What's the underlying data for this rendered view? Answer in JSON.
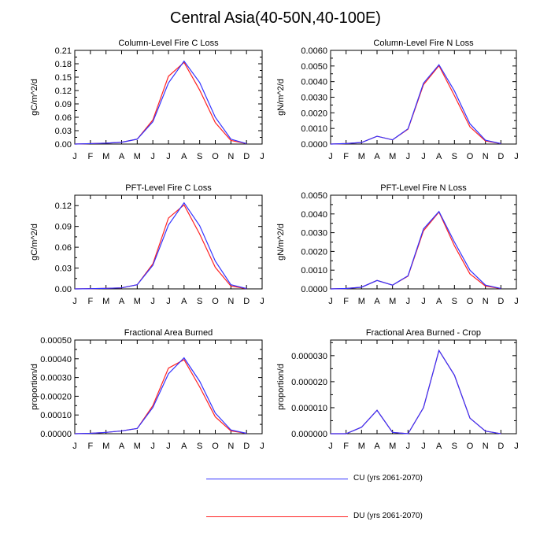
{
  "title": "Central Asia(40-50N,40-100E)",
  "colors": {
    "cu": "#3333ff",
    "du": "#ff2222"
  },
  "month_ticks": [
    "J",
    "F",
    "M",
    "A",
    "M",
    "J",
    "J",
    "A",
    "S",
    "O",
    "N",
    "D",
    "J"
  ],
  "legend": {
    "items": [
      {
        "label": "CU (yrs 2061-2070)",
        "color": "#3333ff"
      },
      {
        "label": "DU (yrs 2061-2070)",
        "color": "#ff2222"
      }
    ]
  },
  "chart_data": [
    {
      "type": "line",
      "title": "Column-Level Fire C Loss",
      "ylabel": "gC/m^2/d",
      "ylim": [
        0,
        0.21
      ],
      "yticks": [
        "0.00",
        "0.03",
        "0.06",
        "0.09",
        "0.12",
        "0.15",
        "0.18",
        "0.21"
      ],
      "x": [
        "Jan",
        "Feb",
        "Mar",
        "Apr",
        "May",
        "Jun",
        "Jul",
        "Aug",
        "Sep",
        "Oct",
        "Nov",
        "Dec"
      ],
      "series": [
        {
          "name": "CU (yrs 2061-2070)",
          "values": [
            0.0,
            0.001,
            0.002,
            0.004,
            0.011,
            0.05,
            0.137,
            0.186,
            0.138,
            0.06,
            0.011,
            0.001
          ]
        },
        {
          "name": "DU (yrs 2061-2070)",
          "values": [
            0.0,
            0.001,
            0.002,
            0.004,
            0.011,
            0.054,
            0.152,
            0.183,
            0.121,
            0.048,
            0.008,
            0.001
          ]
        }
      ]
    },
    {
      "type": "line",
      "title": "Column-Level Fire N Loss",
      "ylabel": "gN/m^2/d",
      "ylim": [
        0,
        0.006
      ],
      "yticks": [
        "0.0000",
        "0.0010",
        "0.0020",
        "0.0030",
        "0.0040",
        "0.0050",
        "0.0060"
      ],
      "x": [
        "Jan",
        "Feb",
        "Mar",
        "Apr",
        "May",
        "Jun",
        "Jul",
        "Aug",
        "Sep",
        "Oct",
        "Nov",
        "Dec"
      ],
      "series": [
        {
          "name": "CU (yrs 2061-2070)",
          "values": [
            0.0,
            3e-05,
            0.0001,
            0.0005,
            0.00027,
            0.00098,
            0.0039,
            0.00508,
            0.0034,
            0.0013,
            0.00025,
            3e-05
          ]
        },
        {
          "name": "DU (yrs 2061-2070)",
          "values": [
            0.0,
            3e-05,
            0.0001,
            0.0005,
            0.00027,
            0.00095,
            0.0038,
            0.00502,
            0.0031,
            0.0011,
            0.0002,
            3e-05
          ]
        }
      ]
    },
    {
      "type": "line",
      "title": "PFT-Level Fire C Loss",
      "ylabel": "gC/m^2/d",
      "ylim": [
        0,
        0.135
      ],
      "yticks": [
        "0.00",
        "0.03",
        "0.06",
        "0.09",
        "0.12"
      ],
      "x": [
        "Jan",
        "Feb",
        "Mar",
        "Apr",
        "May",
        "Jun",
        "Jul",
        "Aug",
        "Sep",
        "Oct",
        "Nov",
        "Dec"
      ],
      "series": [
        {
          "name": "CU (yrs 2061-2070)",
          "values": [
            0.0,
            0.0003,
            0.0008,
            0.0015,
            0.006,
            0.034,
            0.092,
            0.124,
            0.091,
            0.04,
            0.006,
            0.0005
          ]
        },
        {
          "name": "DU (yrs 2061-2070)",
          "values": [
            0.0,
            0.0003,
            0.0008,
            0.0015,
            0.006,
            0.036,
            0.102,
            0.121,
            0.079,
            0.031,
            0.004,
            0.0004
          ]
        }
      ]
    },
    {
      "type": "line",
      "title": "PFT-Level Fire N Loss",
      "ylabel": "gN/m^2/d",
      "ylim": [
        0,
        0.005
      ],
      "yticks": [
        "0.0000",
        "0.0010",
        "0.0020",
        "0.0030",
        "0.0040",
        "0.0050"
      ],
      "x": [
        "Jan",
        "Feb",
        "Mar",
        "Apr",
        "May",
        "Jun",
        "Jul",
        "Aug",
        "Sep",
        "Oct",
        "Nov",
        "Dec"
      ],
      "series": [
        {
          "name": "CU (yrs 2061-2070)",
          "values": [
            0.0,
            2e-05,
            9e-05,
            0.00045,
            0.0002,
            0.0007,
            0.0032,
            0.00413,
            0.0025,
            0.001,
            0.0002,
            2e-05
          ]
        },
        {
          "name": "DU (yrs 2061-2070)",
          "values": [
            0.0,
            2e-05,
            9e-05,
            0.00045,
            0.0002,
            0.00068,
            0.0031,
            0.0041,
            0.0023,
            0.0008,
            0.00015,
            2e-05
          ]
        }
      ]
    },
    {
      "type": "line",
      "title": "Fractional Area Burned",
      "ylabel": "proportion/d",
      "ylim": [
        0,
        0.0005
      ],
      "yticks": [
        "0.00000",
        "0.00010",
        "0.00020",
        "0.00030",
        "0.00040",
        "0.00050"
      ],
      "x": [
        "Jan",
        "Feb",
        "Mar",
        "Apr",
        "May",
        "Jun",
        "Jul",
        "Aug",
        "Sep",
        "Oct",
        "Nov",
        "Dec"
      ],
      "series": [
        {
          "name": "CU (yrs 2061-2070)",
          "values": [
            0.0,
            2e-06,
            7e-06,
            1.5e-05,
            2.8e-05,
            0.00014,
            0.00032,
            0.000405,
            0.00028,
            0.00011,
            2e-05,
            2e-06
          ]
        },
        {
          "name": "DU (yrs 2061-2070)",
          "values": [
            0.0,
            2e-06,
            7e-06,
            1.5e-05,
            2.8e-05,
            0.00015,
            0.00035,
            0.000395,
            0.00025,
            9e-05,
            1.5e-05,
            2e-06
          ]
        }
      ]
    },
    {
      "type": "line",
      "title": "Fractional Area Burned - Crop",
      "ylabel": "proportion/d",
      "ylim": [
        0,
        3.6e-05
      ],
      "yticks": [
        "0.000000",
        "0.000010",
        "0.000020",
        "0.000030"
      ],
      "x": [
        "Jan",
        "Feb",
        "Mar",
        "Apr",
        "May",
        "Jun",
        "Jul",
        "Aug",
        "Sep",
        "Oct",
        "Nov",
        "Dec"
      ],
      "series": [
        {
          "name": "CU (yrs 2061-2070)",
          "values": [
            0.0,
            0.0,
            2.5e-06,
            9e-06,
            5e-07,
            0.0,
            1e-05,
            3.2e-05,
            2.25e-05,
            6e-06,
            1e-06,
            0.0
          ]
        },
        {
          "name": "DU (yrs 2061-2070)",
          "values": [
            0.0,
            0.0,
            2.5e-06,
            9e-06,
            5e-07,
            0.0,
            1e-05,
            3.2e-05,
            2.25e-05,
            6e-06,
            1e-06,
            0.0
          ]
        }
      ]
    }
  ]
}
